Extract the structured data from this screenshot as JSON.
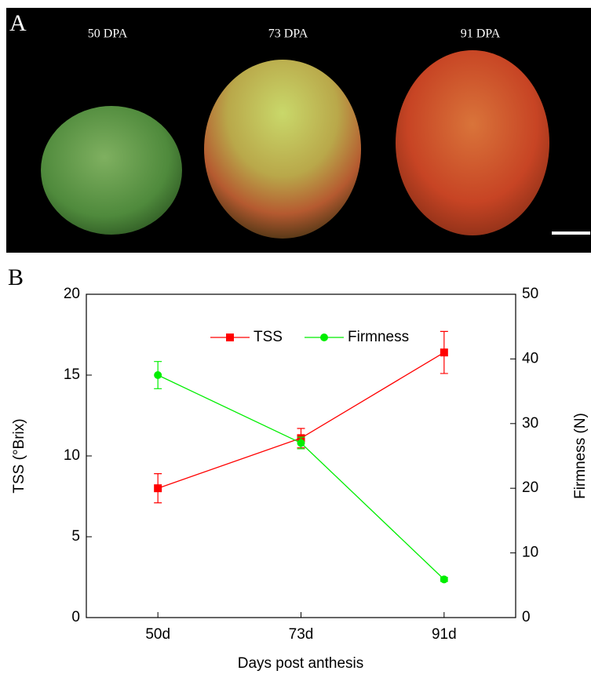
{
  "panel_a": {
    "label": "A",
    "captions": [
      "50 DPA",
      "73 DPA",
      "91 DPA"
    ]
  },
  "panel_b_label": "B",
  "chart_data": {
    "type": "line",
    "x_label": "Days post anthesis",
    "y_label": "TSS (°Brix)",
    "y2_label": "Firmness (N)",
    "categories": [
      "50d",
      "73d",
      "91d"
    ],
    "series": [
      {
        "name": "TSS",
        "color": "#ff0000",
        "marker": "square",
        "values": [
          8.0,
          11.1,
          16.4
        ],
        "errors": [
          0.9,
          0.6,
          1.3
        ]
      },
      {
        "name": "Firmness",
        "color": "#00ee00",
        "marker": "circle",
        "axis": "y2",
        "values": [
          37.5,
          27.0,
          5.9
        ],
        "errors": [
          2.1,
          0.9,
          0.3
        ]
      }
    ],
    "ylim": [
      0,
      20
    ],
    "yticks": [
      0,
      5,
      10,
      15,
      20
    ],
    "y2lim": [
      0,
      50
    ],
    "y2ticks": [
      0,
      10,
      20,
      30,
      40,
      50
    ],
    "grid": false,
    "legend": "top"
  }
}
